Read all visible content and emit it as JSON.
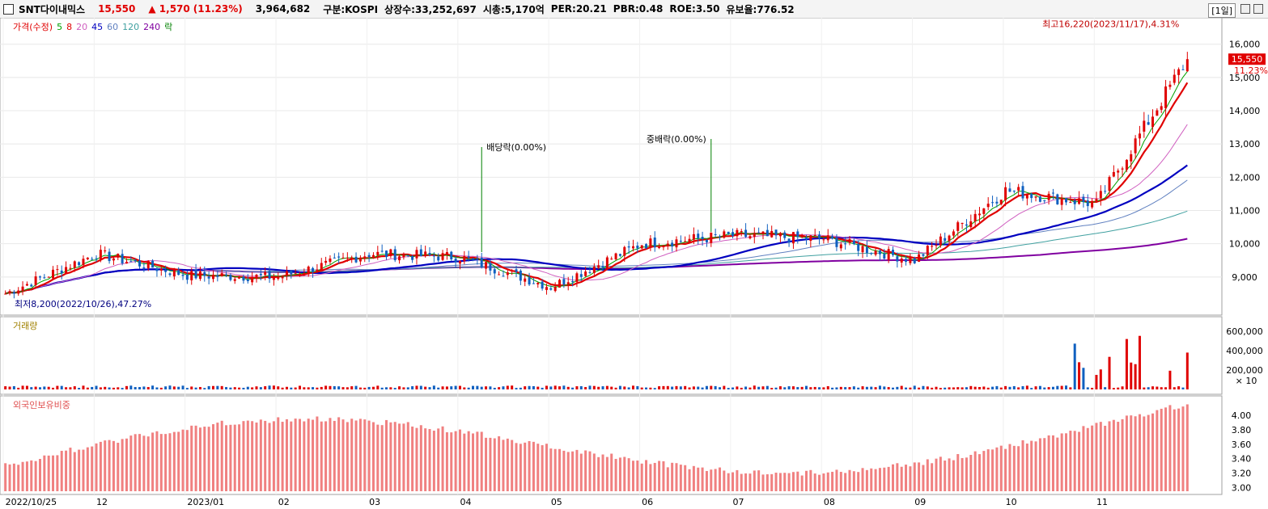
{
  "header": {
    "name": "SNT다이내믹스",
    "price": "15,550",
    "change": "▲ 1,570",
    "change_pct": "(11.23%)",
    "volume": "3,964,682",
    "market": "구분:KOSPI",
    "shares": "상장수:33,252,697",
    "mcap": "시총:5,170억",
    "per": "PER:20.21",
    "pbr": "PBR:0.48",
    "roe": "ROE:3.50",
    "retention": "유보율:776.52",
    "period": "[1일]"
  },
  "legend": [
    {
      "label": "가격(수정)",
      "color": "#e00000"
    },
    {
      "label": "5",
      "color": "#00a000"
    },
    {
      "label": "8",
      "color": "#e00000"
    },
    {
      "label": "20",
      "color": "#d060c0"
    },
    {
      "label": "45",
      "color": "#0000c0"
    },
    {
      "label": "60",
      "color": "#6080c0"
    },
    {
      "label": "120",
      "color": "#40a0a0"
    },
    {
      "label": "240",
      "color": "#8000a0"
    },
    {
      "label": "락",
      "color": "#008000"
    }
  ],
  "annotations": {
    "high": "최고16,220(2023/11/17),4.31%",
    "low": "최저8,200(2022/10/26),47.27%",
    "dividend1": "배당락(0.00%)",
    "dividend2": "중배락(0.00%)",
    "current_price": "15,550",
    "current_pct": "11.23%"
  },
  "volume_label": "거래량",
  "foreign_label": "외국인보유비중",
  "volume_unit": "× 10",
  "price_ticks": [
    "16,000",
    "15,000",
    "14,000",
    "13,000",
    "12,000",
    "11,000",
    "10,000",
    "9,000"
  ],
  "volume_ticks": [
    "600,000",
    "400,000",
    "200,000"
  ],
  "foreign_ticks": [
    "4.00",
    "3.80",
    "3.60",
    "3.40",
    "3.20",
    "3.00"
  ],
  "x_labels": [
    "2022/10/25",
    "12",
    "2023/01",
    "02",
    "03",
    "04",
    "05",
    "06",
    "07",
    "08",
    "09",
    "10",
    "11"
  ],
  "chart_data": {
    "type": "candlestick",
    "title": "SNT다이내믹스 일봉",
    "price_range": [
      8000,
      16600
    ],
    "volume_range": [
      0,
      700000
    ],
    "foreign_range": [
      2.95,
      4.2
    ],
    "monthly_close": [
      {
        "month": "2022/10",
        "close": 8500
      },
      {
        "month": "2022/11",
        "close": 9700
      },
      {
        "month": "2022/12",
        "close": 9050
      },
      {
        "month": "2023/01",
        "close": 9000
      },
      {
        "month": "2023/02",
        "close": 9700
      },
      {
        "month": "2023/03",
        "close": 9600
      },
      {
        "month": "2023/04",
        "close": 8700
      },
      {
        "month": "2023/05",
        "close": 10000
      },
      {
        "month": "2023/06",
        "close": 10250
      },
      {
        "month": "2023/07",
        "close": 10150
      },
      {
        "month": "2023/08",
        "close": 9500
      },
      {
        "month": "2023/09",
        "close": 11600
      },
      {
        "month": "2023/10",
        "close": 11200
      },
      {
        "month": "2023/11",
        "close": 15550
      }
    ],
    "high": {
      "date": "2023/11/17",
      "value": 16220
    },
    "low": {
      "date": "2022/10/26",
      "value": 8200
    },
    "last_close": 15550,
    "last_volume": 3964682
  }
}
